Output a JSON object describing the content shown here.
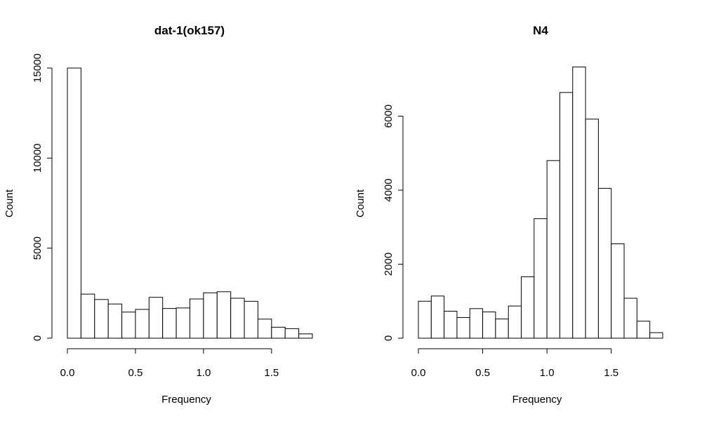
{
  "chart_data": [
    {
      "type": "bar",
      "title": "dat-1(ok157)",
      "xlabel": "Frequency",
      "ylabel": "Count",
      "xlim": [
        0.0,
        1.8
      ],
      "ylim": [
        0,
        15000
      ],
      "x_ticks": [
        "0.0",
        "0.5",
        "1.0",
        "1.5"
      ],
      "y_ticks": [
        "0",
        "5000",
        "10000",
        "15000"
      ],
      "bin_width": 0.1,
      "bin_start": 0.0,
      "values": [
        15000,
        2450,
        2150,
        1900,
        1450,
        1600,
        2270,
        1650,
        1680,
        2180,
        2520,
        2580,
        2220,
        2050,
        1060,
        610,
        530,
        240
      ],
      "grid": false
    },
    {
      "type": "bar",
      "title": "N4",
      "xlabel": "Frequency",
      "ylabel": "Count",
      "xlim": [
        0.0,
        1.9
      ],
      "ylim": [
        0,
        7300
      ],
      "x_ticks": [
        "0.0",
        "0.5",
        "1.0",
        "1.5"
      ],
      "y_ticks": [
        "0",
        "2000",
        "4000",
        "6000"
      ],
      "bin_width": 0.1,
      "bin_start": 0.0,
      "values": [
        1000,
        1140,
        730,
        560,
        800,
        710,
        520,
        870,
        1660,
        3230,
        4800,
        6640,
        7330,
        5920,
        4050,
        2550,
        1080,
        460,
        150
      ],
      "grid": false
    }
  ]
}
